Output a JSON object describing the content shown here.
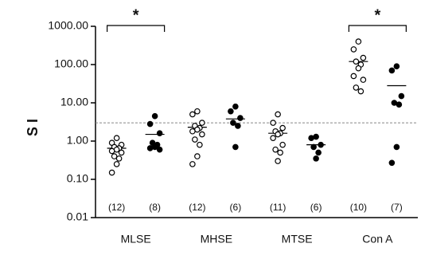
{
  "chart_data": {
    "type": "dot",
    "y_label": "S I",
    "log_y": true,
    "ylim": [
      0.01,
      1000
    ],
    "yticks": [
      {
        "value": 0.01,
        "label": "0.01"
      },
      {
        "value": 0.1,
        "label": "0.10"
      },
      {
        "value": 1,
        "label": "1.00"
      },
      {
        "value": 10,
        "label": "10.00"
      },
      {
        "value": 100,
        "label": "100.00"
      },
      {
        "value": 1000,
        "label": "1000.00"
      }
    ],
    "reference_line": 3,
    "categories": [
      {
        "label": "MLSE",
        "annotation": "*",
        "groups": [
          {
            "marker": "open",
            "count_label": "(12)",
            "median": 0.65,
            "values": [
              1.2,
              0.9,
              0.8,
              0.7,
              0.65,
              0.6,
              0.55,
              0.5,
              0.4,
              0.35,
              0.25,
              0.15
            ]
          },
          {
            "marker": "filled",
            "count_label": "(8)",
            "median": 1.5,
            "values": [
              4.5,
              2.8,
              1.6,
              0.9,
              0.8,
              0.7,
              0.65,
              0.6
            ]
          }
        ]
      },
      {
        "label": "MHSE",
        "groups": [
          {
            "marker": "open",
            "count_label": "(12)",
            "median": 2.3,
            "values": [
              6,
              5,
              3,
              2.5,
              2.2,
              2,
              1.8,
              1.5,
              1.1,
              0.8,
              0.4,
              0.25
            ]
          },
          {
            "marker": "filled",
            "count_label": "(6)",
            "median": 3.8,
            "values": [
              8,
              6,
              4,
              3,
              2.5,
              0.7
            ]
          }
        ]
      },
      {
        "label": "MTSE",
        "groups": [
          {
            "marker": "open",
            "count_label": "(11)",
            "median": 1.6,
            "values": [
              5,
              3,
              2.2,
              1.8,
              1.6,
              1.5,
              1.2,
              0.8,
              0.6,
              0.5,
              0.3
            ]
          },
          {
            "marker": "filled",
            "count_label": "(6)",
            "median": 0.8,
            "values": [
              1.3,
              1.2,
              0.8,
              0.7,
              0.5,
              0.35
            ]
          }
        ]
      },
      {
        "label": "Con A",
        "annotation": "*",
        "groups": [
          {
            "marker": "open",
            "count_label": "(10)",
            "median": 120,
            "values": [
              400,
              250,
              150,
              120,
              100,
              80,
              50,
              40,
              25,
              20
            ]
          },
          {
            "marker": "filled",
            "count_label": "(7)",
            "median": 28,
            "values": [
              90,
              70,
              15,
              10,
              9,
              0.7,
              0.27
            ]
          }
        ]
      }
    ]
  }
}
